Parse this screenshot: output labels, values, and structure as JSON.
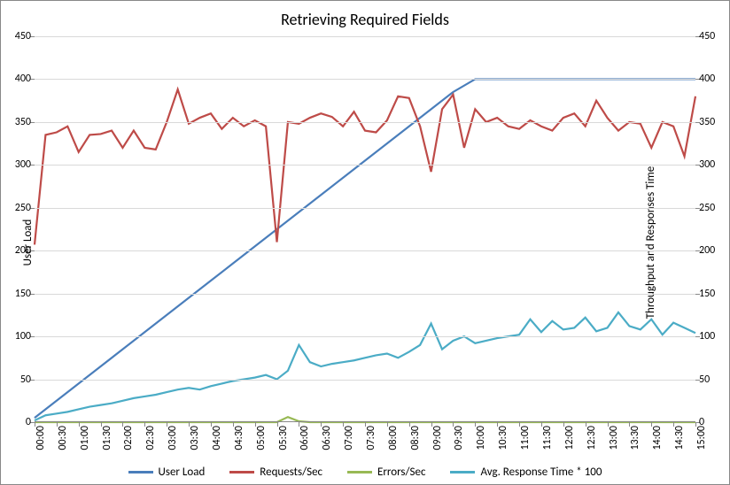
{
  "chart": {
    "type": "line",
    "title": "Retrieving Required Fields",
    "title_fontsize": 18,
    "background_color": "#ffffff",
    "border_color": "#888888",
    "grid_color": "#d9d9d9",
    "y_left": {
      "label": "User Load",
      "min": 0,
      "max": 450,
      "step": 50,
      "ticks": [
        0,
        50,
        100,
        150,
        200,
        250,
        300,
        350,
        400,
        450
      ]
    },
    "y_right": {
      "label": "Throughput and Responses Time",
      "min": 0,
      "max": 450,
      "step": 50,
      "ticks": [
        0,
        50,
        100,
        150,
        200,
        250,
        300,
        350,
        400,
        450
      ]
    },
    "x": {
      "labels": [
        "00:00",
        "00:30",
        "01:00",
        "01:30",
        "02:00",
        "02:30",
        "03:00",
        "03:30",
        "04:00",
        "04:30",
        "05:00",
        "05:30",
        "06:00",
        "06:30",
        "07:00",
        "07:30",
        "08:00",
        "08:30",
        "09:00",
        "09:30",
        "10:00",
        "10:30",
        "11:00",
        "11:30",
        "12:00",
        "12:30",
        "13:00",
        "13:30",
        "14:00",
        "14:30",
        "15:00"
      ]
    },
    "series": {
      "user_load": {
        "label": "User Load",
        "color": "#4a7ebb",
        "line_width": 2.2,
        "values": [
          5,
          25,
          45,
          65,
          85,
          105,
          125,
          145,
          165,
          185,
          205,
          225,
          245,
          265,
          285,
          305,
          325,
          345,
          365,
          385,
          400,
          400,
          400,
          400,
          400,
          400,
          400,
          400,
          400,
          400,
          400
        ]
      },
      "requests_sec": {
        "label": "Requests/Sec",
        "color": "#be4b48",
        "line_width": 2.2,
        "values": [
          207,
          335,
          338,
          345,
          315,
          335,
          336,
          340,
          320,
          340,
          320,
          318,
          350,
          388,
          348,
          355,
          360,
          342,
          355,
          345,
          352,
          345,
          210,
          350,
          348,
          355,
          360,
          356,
          345,
          362,
          340,
          338,
          352,
          380,
          378,
          345,
          292,
          365,
          382,
          320,
          365,
          350,
          355,
          345,
          342,
          352,
          345,
          340,
          355,
          360,
          345,
          375,
          355,
          340,
          350,
          348,
          320,
          350,
          345,
          310,
          380
        ]
      },
      "errors_sec": {
        "label": "Errors/Sec",
        "color": "#98b954",
        "line_width": 2.2,
        "values": [
          0,
          0,
          0,
          0,
          0,
          0,
          0,
          0,
          0,
          0,
          0,
          0,
          0,
          0,
          0,
          0,
          0,
          0,
          0,
          0,
          0,
          0,
          0,
          6,
          1,
          0,
          0,
          0,
          0,
          0,
          0,
          0,
          0,
          0,
          0,
          0,
          0,
          0,
          0,
          0,
          0,
          0,
          0,
          0,
          0,
          0,
          0,
          0,
          0,
          0,
          0,
          0,
          0,
          0,
          0,
          0,
          0,
          0,
          0,
          0,
          0
        ]
      },
      "avg_response": {
        "label": "Avg. Response Time * 100",
        "color": "#4bacc6",
        "line_width": 2.2,
        "values": [
          2,
          8,
          10,
          12,
          15,
          18,
          20,
          22,
          25,
          28,
          30,
          32,
          35,
          38,
          40,
          38,
          42,
          45,
          48,
          50,
          52,
          55,
          50,
          60,
          90,
          70,
          65,
          68,
          70,
          72,
          75,
          78,
          80,
          75,
          82,
          90,
          115,
          85,
          95,
          100,
          92,
          95,
          98,
          100,
          102,
          120,
          105,
          118,
          108,
          110,
          122,
          106,
          110,
          128,
          112,
          108,
          120,
          102,
          116,
          110,
          104
        ]
      }
    },
    "legend": {
      "items": [
        "user_load",
        "requests_sec",
        "errors_sec",
        "avg_response"
      ]
    }
  }
}
